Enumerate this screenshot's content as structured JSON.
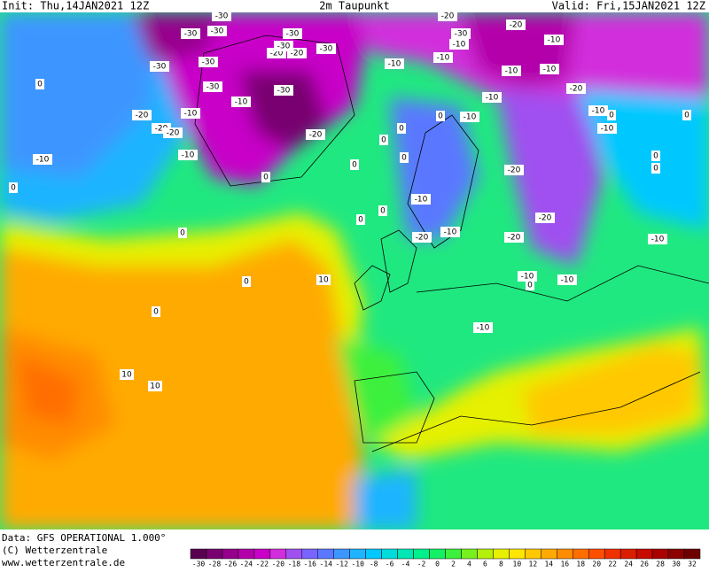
{
  "header": {
    "init": "Init: Thu,14JAN2021  12Z",
    "title": "2m Taupunkt",
    "valid": "Valid: Fri,15JAN2021  12Z"
  },
  "footer": {
    "data": "Data: GFS OPERATIONAL 1.000°",
    "copyright": "(C) Wetterzentrale",
    "url": "www.wetterzentrale.de"
  },
  "colorbar": {
    "ticks": [
      -30,
      -28,
      -26,
      -24,
      -22,
      -20,
      -18,
      -16,
      -14,
      -12,
      -10,
      -8,
      -6,
      -4,
      -2,
      0,
      2,
      4,
      6,
      8,
      10,
      12,
      14,
      16,
      18,
      20,
      22,
      24,
      26,
      28,
      30,
      32
    ],
    "colors": [
      "#5a0050",
      "#780070",
      "#96008c",
      "#b400aa",
      "#c800c8",
      "#d22ddc",
      "#a050f0",
      "#7864ff",
      "#5a78ff",
      "#3c96ff",
      "#1eb4ff",
      "#00c8ff",
      "#00dcdc",
      "#00e6b4",
      "#00f08c",
      "#14f064",
      "#3cf03c",
      "#78f01e",
      "#b4f00a",
      "#e6f000",
      "#ffe600",
      "#ffc800",
      "#ffaa00",
      "#ff8c00",
      "#ff6e00",
      "#ff5000",
      "#f03200",
      "#dc1e00",
      "#c80a00",
      "#aa0000",
      "#8c0000",
      "#6e0000"
    ]
  },
  "contour_labels": [
    -30,
    -30,
    -30,
    -30,
    -20,
    -20,
    -30,
    -30,
    -30,
    -10,
    -20,
    -10,
    -20,
    -10,
    -10,
    -30,
    -20,
    -30,
    -20,
    -30,
    -30,
    -20,
    -20,
    -10,
    -10,
    -10,
    -10,
    -10,
    -10,
    -20,
    -10,
    -10,
    -20,
    -10,
    -10,
    -20,
    -10,
    -10,
    -10,
    -10,
    -10,
    -20,
    -20,
    -10,
    0,
    0,
    0,
    0,
    0,
    0,
    0,
    0,
    0,
    0,
    0,
    0,
    0,
    0,
    0,
    0,
    0,
    0,
    10,
    10,
    10
  ]
}
